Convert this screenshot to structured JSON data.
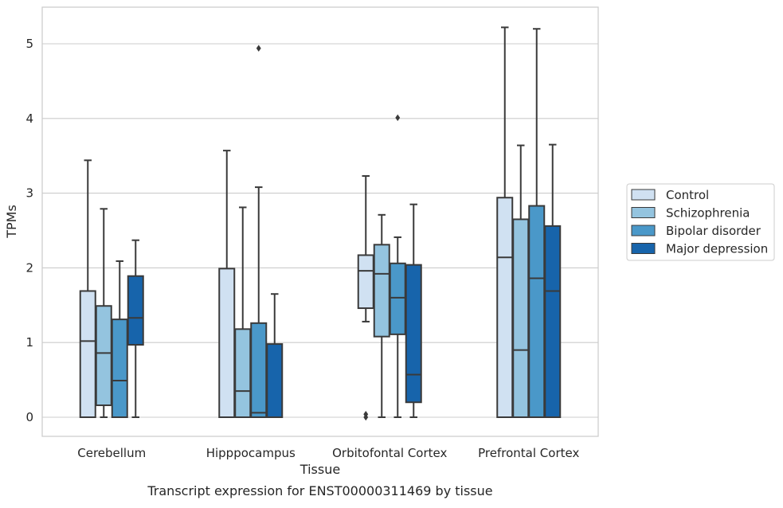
{
  "chart_data": {
    "type": "box",
    "xlabel": "Tissue",
    "ylabel": "TPMs",
    "caption": "Transcript expression for ENST00000311469 by tissue",
    "ylim": [
      -0.25,
      5.5
    ],
    "yticks": [
      0,
      1,
      2,
      3,
      4,
      5
    ],
    "grid": "horizontal",
    "legend_position": "right",
    "categories": [
      "Cerebellum",
      "Hipppocampus",
      "Orbitofontal Cortex",
      "Prefrontal Cortex"
    ],
    "series": [
      {
        "name": "Control",
        "color": "#d0e1f2",
        "boxes": [
          {
            "whislo": 0,
            "q1": 0,
            "med": 1.02,
            "q3": 1.69,
            "whishi": 3.44,
            "fliers": []
          },
          {
            "whislo": 0,
            "q1": 0,
            "med": 0,
            "q3": 1.99,
            "whishi": 3.57,
            "fliers": []
          },
          {
            "whislo": 1.28,
            "q1": 1.46,
            "med": 1.96,
            "q3": 2.17,
            "whishi": 3.23,
            "fliers": [
              0.0,
              0.04
            ]
          },
          {
            "whislo": 0,
            "q1": 0,
            "med": 2.14,
            "q3": 2.94,
            "whishi": 5.22,
            "fliers": []
          }
        ]
      },
      {
        "name": "Schizophrenia",
        "color": "#94c4df",
        "boxes": [
          {
            "whislo": 0,
            "q1": 0.16,
            "med": 0.86,
            "q3": 1.49,
            "whishi": 2.79,
            "fliers": []
          },
          {
            "whislo": 0,
            "q1": 0,
            "med": 0.35,
            "q3": 1.18,
            "whishi": 2.81,
            "fliers": []
          },
          {
            "whislo": 0,
            "q1": 1.08,
            "med": 1.92,
            "q3": 2.31,
            "whishi": 2.71,
            "fliers": []
          },
          {
            "whislo": 0,
            "q1": 0,
            "med": 0.9,
            "q3": 2.65,
            "whishi": 3.64,
            "fliers": []
          }
        ]
      },
      {
        "name": "Bipolar disorder",
        "color": "#4a98c9",
        "boxes": [
          {
            "whislo": 0,
            "q1": 0,
            "med": 0.49,
            "q3": 1.31,
            "whishi": 2.09,
            "fliers": []
          },
          {
            "whislo": 0,
            "q1": 0,
            "med": 0.06,
            "q3": 1.26,
            "whishi": 3.08,
            "fliers": [
              4.94
            ]
          },
          {
            "whislo": 0,
            "q1": 1.11,
            "med": 1.6,
            "q3": 2.06,
            "whishi": 2.41,
            "fliers": [
              4.01
            ]
          },
          {
            "whislo": 0,
            "q1": 0,
            "med": 1.86,
            "q3": 2.83,
            "whishi": 5.2,
            "fliers": []
          }
        ]
      },
      {
        "name": "Major depression",
        "color": "#1764ab",
        "boxes": [
          {
            "whislo": 0,
            "q1": 0.97,
            "med": 1.33,
            "q3": 1.89,
            "whishi": 2.37,
            "fliers": []
          },
          {
            "whislo": 0,
            "q1": 0,
            "med": 0,
            "q3": 0.98,
            "whishi": 1.65,
            "fliers": []
          },
          {
            "whislo": 0,
            "q1": 0.2,
            "med": 0.57,
            "q3": 2.04,
            "whishi": 2.85,
            "fliers": []
          },
          {
            "whislo": 0,
            "q1": 0,
            "med": 1.69,
            "q3": 2.56,
            "whishi": 3.65,
            "fliers": []
          }
        ]
      }
    ]
  }
}
